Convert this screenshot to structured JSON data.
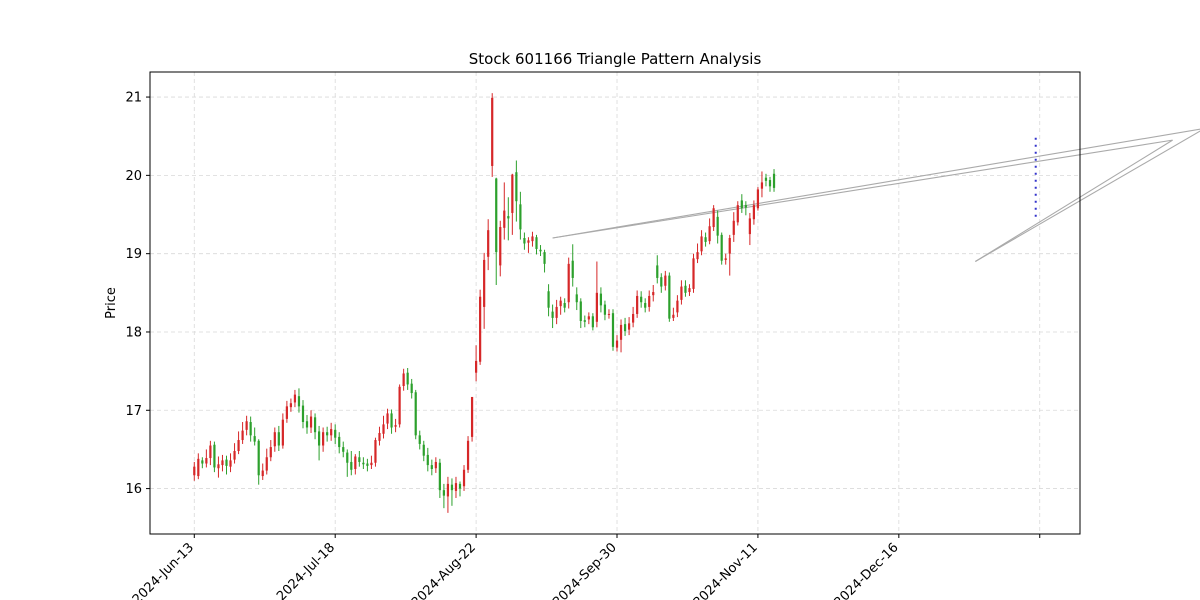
{
  "chart_data": {
    "type": "candlestick",
    "title": "Stock 601166 Triangle Pattern Analysis",
    "xlabel": "",
    "ylabel": "Price",
    "x_range": [
      -11,
      220
    ],
    "ylim": [
      15.42,
      21.32
    ],
    "y_ticks": [
      16,
      17,
      18,
      19,
      20,
      21
    ],
    "x_ticks": [
      {
        "x": 0,
        "label": "2024-Jun-13"
      },
      {
        "x": 35,
        "label": "2024-Jul-18"
      },
      {
        "x": 70,
        "label": "2024-Aug-22"
      },
      {
        "x": 105,
        "label": "2024-Sep-30"
      },
      {
        "x": 140,
        "label": "2024-Nov-11"
      },
      {
        "x": 175,
        "label": "2024-Dec-16"
      },
      {
        "x": 210,
        "label": ""
      },
      {
        "x": 245,
        "label": ""
      }
    ],
    "grid": true,
    "colors": {
      "up": "#d62728",
      "down": "#2ca02c",
      "pattern_line": "#aaaaaa",
      "marker": "#3333cc"
    },
    "candles": [
      [
        16.17,
        16.28,
        16.34,
        16.1
      ],
      [
        16.16,
        16.38,
        16.45,
        16.12
      ],
      [
        16.36,
        16.32,
        16.4,
        16.26
      ],
      [
        16.32,
        16.39,
        16.5,
        16.27
      ],
      [
        16.39,
        16.55,
        16.61,
        16.3
      ],
      [
        16.56,
        16.27,
        16.6,
        16.21
      ],
      [
        16.26,
        16.31,
        16.41,
        16.14
      ],
      [
        16.3,
        16.36,
        16.43,
        16.22
      ],
      [
        16.37,
        16.29,
        16.42,
        16.18
      ],
      [
        16.28,
        16.36,
        16.45,
        16.21
      ],
      [
        16.37,
        16.48,
        16.58,
        16.32
      ],
      [
        16.48,
        16.62,
        16.73,
        16.44
      ],
      [
        16.62,
        16.74,
        16.85,
        16.57
      ],
      [
        16.75,
        16.86,
        16.93,
        16.68
      ],
      [
        16.85,
        16.68,
        16.92,
        16.6
      ],
      [
        16.67,
        16.6,
        16.78,
        16.55
      ],
      [
        16.61,
        16.17,
        16.63,
        16.05
      ],
      [
        16.16,
        16.23,
        16.32,
        16.11
      ],
      [
        16.23,
        16.4,
        16.51,
        16.18
      ],
      [
        16.4,
        16.53,
        16.62,
        16.35
      ],
      [
        16.54,
        16.72,
        16.78,
        16.47
      ],
      [
        16.72,
        16.55,
        16.8,
        16.48
      ],
      [
        16.55,
        16.88,
        16.96,
        16.51
      ],
      [
        16.89,
        17.05,
        17.12,
        16.84
      ],
      [
        17.04,
        17.09,
        17.15,
        16.98
      ],
      [
        17.1,
        17.2,
        17.26,
        17.04
      ],
      [
        17.18,
        17.05,
        17.28,
        16.97
      ],
      [
        17.06,
        16.85,
        17.13,
        16.77
      ],
      [
        16.86,
        16.78,
        16.94,
        16.7
      ],
      [
        16.78,
        16.92,
        17.0,
        16.71
      ],
      [
        16.91,
        16.72,
        16.96,
        16.63
      ],
      [
        16.73,
        16.55,
        16.8,
        16.36
      ],
      [
        16.55,
        16.72,
        16.78,
        16.47
      ],
      [
        16.72,
        16.68,
        16.79,
        16.6
      ],
      [
        16.68,
        16.76,
        16.84,
        16.61
      ],
      [
        16.75,
        16.65,
        16.82,
        16.57
      ],
      [
        16.66,
        16.53,
        16.72,
        16.45
      ],
      [
        16.53,
        16.47,
        16.6,
        16.4
      ],
      [
        16.46,
        16.33,
        16.5,
        16.15
      ],
      [
        16.34,
        16.24,
        16.48,
        16.17
      ],
      [
        16.25,
        16.41,
        16.44,
        16.18
      ],
      [
        16.4,
        16.34,
        16.48,
        16.28
      ],
      [
        16.33,
        16.31,
        16.4,
        16.25
      ],
      [
        16.32,
        16.29,
        16.38,
        16.22
      ],
      [
        16.3,
        16.33,
        16.42,
        16.25
      ],
      [
        16.33,
        16.62,
        16.65,
        16.28
      ],
      [
        16.61,
        16.71,
        16.79,
        16.55
      ],
      [
        16.7,
        16.82,
        16.93,
        16.64
      ],
      [
        16.83,
        16.96,
        17.02,
        16.76
      ],
      [
        16.96,
        16.78,
        17.01,
        16.7
      ],
      [
        16.79,
        16.81,
        16.89,
        16.72
      ],
      [
        16.82,
        17.3,
        17.33,
        16.78
      ],
      [
        17.31,
        17.47,
        17.53,
        17.25
      ],
      [
        17.48,
        17.33,
        17.54,
        17.26
      ],
      [
        17.34,
        17.22,
        17.4,
        17.15
      ],
      [
        17.23,
        16.68,
        17.26,
        16.63
      ],
      [
        16.68,
        16.57,
        16.74,
        16.5
      ],
      [
        16.56,
        16.42,
        16.61,
        16.35
      ],
      [
        16.43,
        16.3,
        16.52,
        16.22
      ],
      [
        16.3,
        16.25,
        16.37,
        16.17
      ],
      [
        16.26,
        16.34,
        16.4,
        16.2
      ],
      [
        16.33,
        15.98,
        16.38,
        15.88
      ],
      [
        15.98,
        15.91,
        16.06,
        15.75
      ],
      [
        15.9,
        16.06,
        16.15,
        15.69
      ],
      [
        16.05,
        15.98,
        16.13,
        15.78
      ],
      [
        15.97,
        16.07,
        16.15,
        15.88
      ],
      [
        16.06,
        16.0,
        16.09,
        15.9
      ],
      [
        16.03,
        16.24,
        16.3,
        15.97
      ],
      [
        16.24,
        16.61,
        16.67,
        16.2
      ],
      [
        16.66,
        17.17,
        17.17,
        16.6
      ],
      [
        17.48,
        17.63,
        17.83,
        17.37
      ],
      [
        17.62,
        18.45,
        18.54,
        17.58
      ],
      [
        18.32,
        18.92,
        19.01,
        18.04
      ],
      [
        18.96,
        19.3,
        19.44,
        18.79
      ],
      [
        20.12,
        20.99,
        21.05,
        19.98
      ],
      [
        19.96,
        19.02,
        19.97,
        18.6
      ],
      [
        18.85,
        19.34,
        19.42,
        18.71
      ],
      [
        19.33,
        19.55,
        19.91,
        19.18
      ],
      [
        19.48,
        19.45,
        19.72,
        19.17
      ],
      [
        19.52,
        20.01,
        20.02,
        19.24
      ],
      [
        20.04,
        19.67,
        20.19,
        19.41
      ],
      [
        19.63,
        19.31,
        19.79,
        19.18
      ],
      [
        19.2,
        19.13,
        19.27,
        19.05
      ],
      [
        19.14,
        19.17,
        19.21,
        19.01
      ],
      [
        19.16,
        19.22,
        19.28,
        19.09
      ],
      [
        19.21,
        19.06,
        19.24,
        18.99
      ],
      [
        19.05,
        19.03,
        19.11,
        18.97
      ],
      [
        19.02,
        18.87,
        19.05,
        18.76
      ],
      [
        18.52,
        18.31,
        18.61,
        18.2
      ],
      [
        18.26,
        18.18,
        18.35,
        18.05
      ],
      [
        18.18,
        18.32,
        18.41,
        18.1
      ],
      [
        18.33,
        18.4,
        18.45,
        18.22
      ],
      [
        18.37,
        18.31,
        18.43,
        18.25
      ],
      [
        18.38,
        18.87,
        18.95,
        18.3
      ],
      [
        18.91,
        18.69,
        19.12,
        18.58
      ],
      [
        18.48,
        18.38,
        18.57,
        18.28
      ],
      [
        18.39,
        18.14,
        18.43,
        18.05
      ],
      [
        18.15,
        18.13,
        18.21,
        18.06
      ],
      [
        18.16,
        18.2,
        18.25,
        18.1
      ],
      [
        18.2,
        18.06,
        18.24,
        18.02
      ],
      [
        18.13,
        18.5,
        18.9,
        18.06
      ],
      [
        18.49,
        18.34,
        18.57,
        18.25
      ],
      [
        18.35,
        18.22,
        18.4,
        18.15
      ],
      [
        18.23,
        18.23,
        18.29,
        18.17
      ],
      [
        18.24,
        17.81,
        18.29,
        17.76
      ],
      [
        17.8,
        17.89,
        17.96,
        17.75
      ],
      [
        17.9,
        18.09,
        18.16,
        17.74
      ],
      [
        18.1,
        18.01,
        18.18,
        17.95
      ],
      [
        18.03,
        18.11,
        18.19,
        17.96
      ],
      [
        18.12,
        18.23,
        18.32,
        18.06
      ],
      [
        18.23,
        18.46,
        18.53,
        18.18
      ],
      [
        18.45,
        18.38,
        18.52,
        18.31
      ],
      [
        18.37,
        18.31,
        18.43,
        18.25
      ],
      [
        18.32,
        18.46,
        18.53,
        18.26
      ],
      [
        18.47,
        18.51,
        18.6,
        18.39
      ],
      [
        18.85,
        18.69,
        18.98,
        18.62
      ],
      [
        18.7,
        18.58,
        18.75,
        18.5
      ],
      [
        18.59,
        18.72,
        18.78,
        18.53
      ],
      [
        18.72,
        18.17,
        18.76,
        18.13
      ],
      [
        18.18,
        18.22,
        18.31,
        18.14
      ],
      [
        18.25,
        18.4,
        18.47,
        18.19
      ],
      [
        18.41,
        18.58,
        18.66,
        18.35
      ],
      [
        18.59,
        18.5,
        18.66,
        18.45
      ],
      [
        18.51,
        18.56,
        18.61,
        18.46
      ],
      [
        18.55,
        18.94,
        19.0,
        18.5
      ],
      [
        18.93,
        19.02,
        19.13,
        18.88
      ],
      [
        19.03,
        19.22,
        19.3,
        18.98
      ],
      [
        19.21,
        19.15,
        19.27,
        19.09
      ],
      [
        19.16,
        19.35,
        19.45,
        19.12
      ],
      [
        19.34,
        19.58,
        19.62,
        19.29
      ],
      [
        19.47,
        19.23,
        19.55,
        19.13
      ],
      [
        19.24,
        18.91,
        19.27,
        18.86
      ],
      [
        18.92,
        18.94,
        19.0,
        18.86
      ],
      [
        19.0,
        19.2,
        19.24,
        18.72
      ],
      [
        19.24,
        19.42,
        19.53,
        19.15
      ],
      [
        19.4,
        19.62,
        19.67,
        19.36
      ],
      [
        19.68,
        19.58,
        19.76,
        19.52
      ],
      [
        19.62,
        19.59,
        19.67,
        19.49
      ],
      [
        19.25,
        19.45,
        19.52,
        19.11
      ],
      [
        19.44,
        19.62,
        19.68,
        19.37
      ],
      [
        19.58,
        19.82,
        19.85,
        19.55
      ],
      [
        19.83,
        19.91,
        20.05,
        19.72
      ],
      [
        19.97,
        19.93,
        20.02,
        19.86
      ],
      [
        19.94,
        19.86,
        19.98,
        19.79
      ],
      [
        20.02,
        19.84,
        20.08,
        19.79
      ]
    ],
    "pattern_lines": [
      {
        "x": [
          89,
          251
        ],
        "y": [
          19.2,
          20.6
        ]
      },
      {
        "x": [
          89,
          243
        ],
        "y": [
          19.2,
          20.45
        ]
      },
      {
        "x": [
          194,
          243
        ],
        "y": [
          18.9,
          20.45
        ]
      },
      {
        "x": [
          194,
          251
        ],
        "y": [
          18.9,
          20.6
        ]
      }
    ],
    "marker_line": {
      "x": 209,
      "y_low": 19.45,
      "y_high": 20.48
    }
  }
}
